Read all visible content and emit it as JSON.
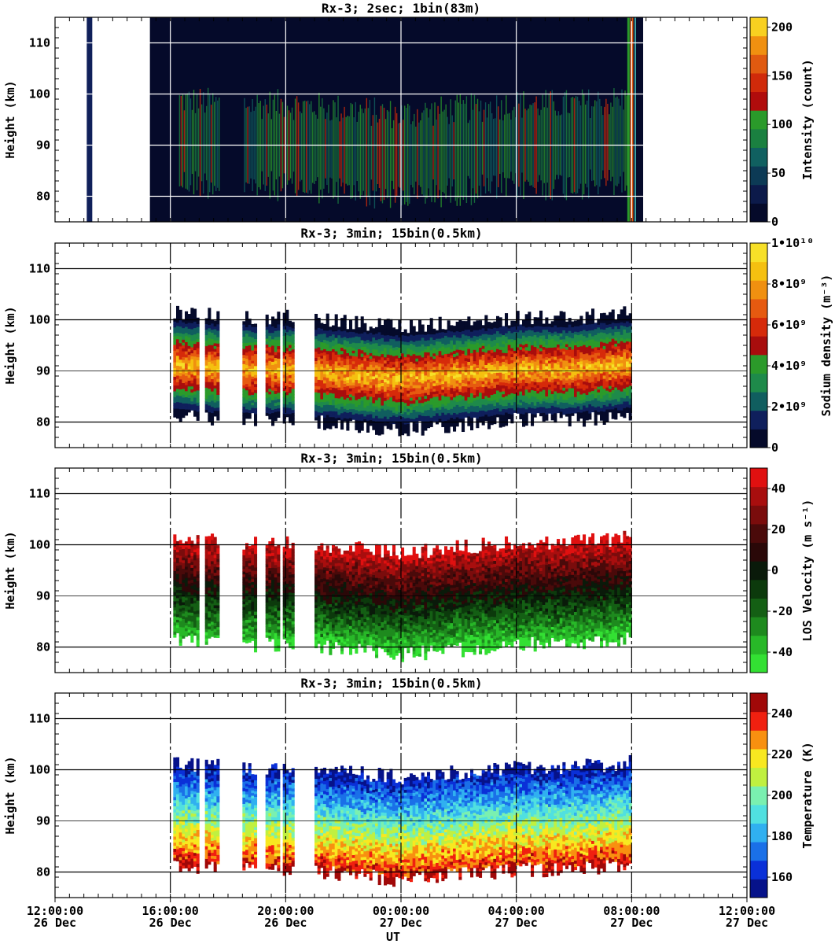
{
  "chart_data": [
    {
      "type": "heatmap",
      "title": "Rx-3;  2sec; 1bin(83m)",
      "ylabel": "Height (km)",
      "ylim": [
        75,
        115
      ],
      "yticks": [
        "80",
        "90",
        "100",
        "110"
      ],
      "colorbar": {
        "label": "Intensity (count)",
        "ticks": [
          "0",
          "50",
          "100",
          "150",
          "200"
        ],
        "range": [
          0,
          210
        ]
      },
      "observation": {
        "start_hour": 16.0,
        "end_hour": 32.4
      },
      "layer": {
        "center_km": [
          90,
          90,
          90,
          90,
          88,
          90,
          90,
          90,
          90
        ],
        "peak": 120
      }
    },
    {
      "type": "heatmap",
      "title": "Rx-3; 3min; 15bin(0.5km)",
      "ylabel": "Height (km)",
      "ylim": [
        75,
        115
      ],
      "yticks": [
        "80",
        "90",
        "100",
        "110"
      ],
      "colorbar": {
        "label": "Sodium density (m⁻³)",
        "ticks": [
          "0",
          "2•10⁹",
          "4•10⁹",
          "6•10⁹",
          "8•10⁹",
          "1•10¹⁰"
        ],
        "range": [
          0,
          10000000000
        ]
      },
      "layer": {
        "center_km": [
          91,
          90,
          90,
          89,
          88,
          89,
          90,
          90,
          91
        ],
        "peak": 9000000000
      }
    },
    {
      "type": "heatmap",
      "title": "Rx-3; 3min; 15bin(0.5km)",
      "ylabel": "Height (km)",
      "ylim": [
        75,
        115
      ],
      "yticks": [
        "80",
        "90",
        "100",
        "110"
      ],
      "colorbar": {
        "label": "LOS Velocity (m s⁻¹)",
        "ticks": [
          "-40",
          "-20",
          "0",
          "20",
          "40"
        ],
        "range": [
          -50,
          50
        ]
      },
      "layer": {
        "center_km": [
          91,
          90,
          90,
          89,
          88,
          89,
          90,
          90,
          91
        ],
        "peak": 40
      }
    },
    {
      "type": "heatmap",
      "title": "Rx-3; 3min; 15bin(0.5km)",
      "ylabel": "Height (km)",
      "ylim": [
        75,
        115
      ],
      "yticks": [
        "80",
        "90",
        "100",
        "110"
      ],
      "colorbar": {
        "label": "Temperature (K)",
        "ticks": [
          "160",
          "180",
          "200",
          "220",
          "240"
        ],
        "range": [
          150,
          250
        ]
      },
      "layer": {
        "center_km": [
          91,
          90,
          90,
          89,
          88,
          89,
          90,
          90,
          91
        ],
        "peak": 240
      }
    }
  ],
  "x_axis": {
    "label": "UT",
    "range_hours": [
      12,
      36
    ],
    "ticks": [
      {
        "hour": 12,
        "time": "12:00:00",
        "date": "26 Dec"
      },
      {
        "hour": 16,
        "time": "16:00:00",
        "date": "26 Dec"
      },
      {
        "hour": 20,
        "time": "20:00:00",
        "date": "26 Dec"
      },
      {
        "hour": 24,
        "time": "00:00:00",
        "date": "27 Dec"
      },
      {
        "hour": 28,
        "time": "04:00:00",
        "date": "27 Dec"
      },
      {
        "hour": 32,
        "time": "08:00:00",
        "date": "27 Dec"
      },
      {
        "hour": 36,
        "time": "12:00:00",
        "date": "27 Dec"
      }
    ]
  },
  "data_blocks_hours": [
    [
      16.1,
      16.55
    ],
    [
      16.6,
      16.95
    ],
    [
      17.2,
      17.7
    ],
    [
      18.5,
      18.98
    ],
    [
      19.3,
      19.8
    ],
    [
      19.9,
      20.25
    ],
    [
      21.0,
      32.0
    ]
  ],
  "colors": {
    "density": [
      "#050a2a",
      "#0f1f5c",
      "#105e5f",
      "#1e8a4a",
      "#2b9a2a",
      "#a80d0d",
      "#d62a0a",
      "#e65a10",
      "#f09010",
      "#f5c010",
      "#f7e028"
    ],
    "velocity": [
      "#33e033",
      "#28b828",
      "#1e8a1e",
      "#145f14",
      "#0c3a0c",
      "#0a1a0a",
      "#2a0808",
      "#4a0a0a",
      "#7a0c0c",
      "#a80e0e",
      "#e01010"
    ],
    "temperature": [
      "#06128a",
      "#0a30d8",
      "#1a70e8",
      "#30b0f0",
      "#50e0e0",
      "#7af0b0",
      "#c0f040",
      "#f8e820",
      "#f89010",
      "#f02010",
      "#a00808"
    ]
  }
}
